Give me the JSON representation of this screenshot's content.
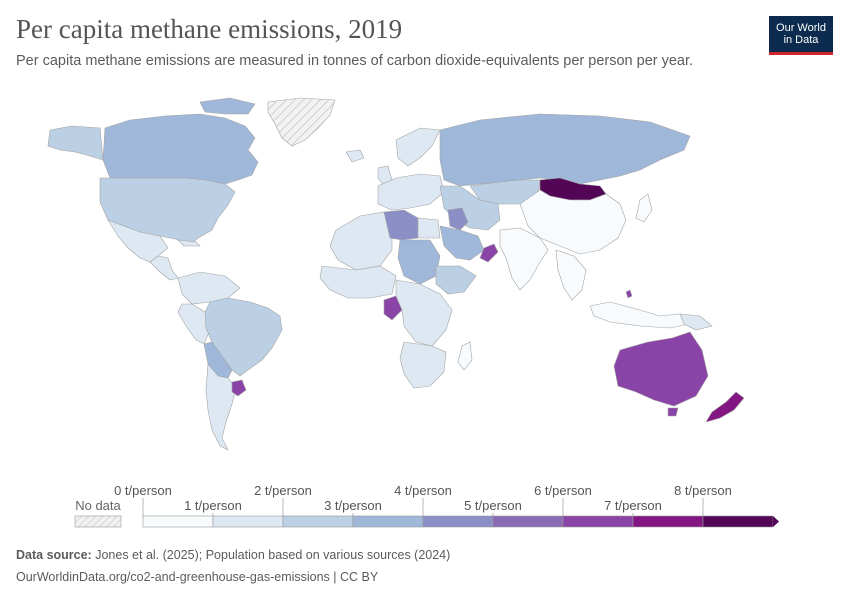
{
  "header": {
    "title": "Per capita methane emissions, 2019",
    "subtitle": "Per capita methane emissions are measured in tonnes of carbon dioxide-equivalents per person per year.",
    "logo_line1": "Our World",
    "logo_line2": "in Data"
  },
  "legend": {
    "no_data_label": "No data",
    "ticks": [
      "0 t/person",
      "1 t/person",
      "2 t/person",
      "3 t/person",
      "4 t/person",
      "5 t/person",
      "6 t/person",
      "7 t/person",
      "8 t/person"
    ],
    "colors": [
      "#f7fbfd",
      "#dde8f2",
      "#bcd0e5",
      "#9fb8da",
      "#8b8fc6",
      "#8b6ab4",
      "#8a43a6",
      "#841683",
      "#520655"
    ]
  },
  "map_colors": {
    "ocean": "#ffffff",
    "border": "#a4a4a4",
    "no_data": "#e6e6e6"
  },
  "footer": {
    "source_label": "Data source:",
    "source_text": "Jones et al. (2025); Population based on various sources (2024)",
    "url_text": "OurWorldinData.org/co2-and-greenhouse-gas-emissions | CC BY"
  }
}
